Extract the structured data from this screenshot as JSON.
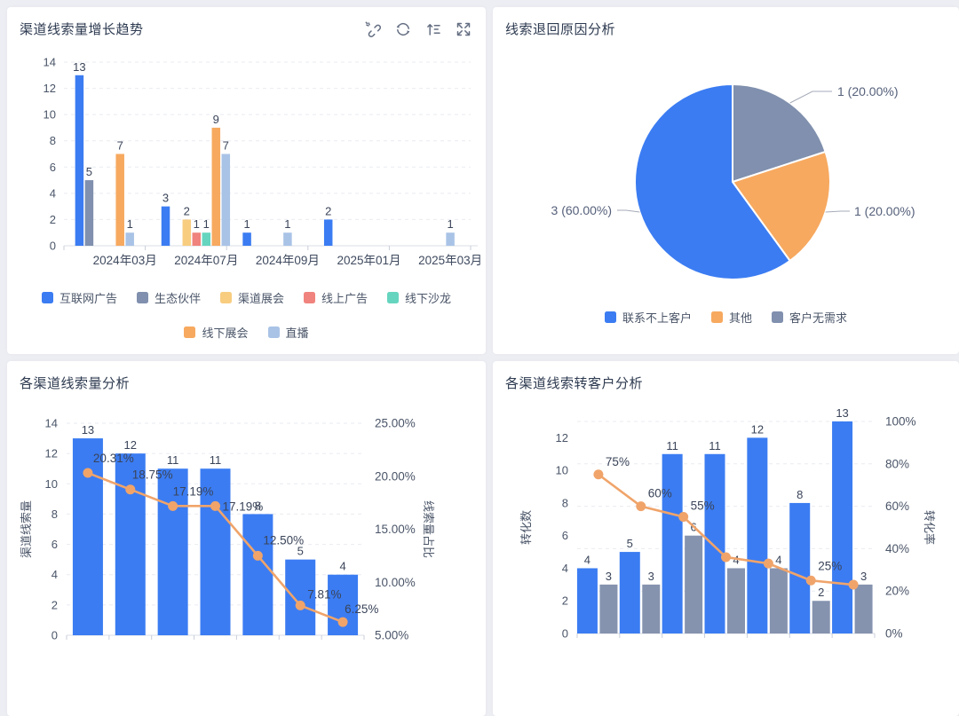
{
  "page": {
    "background": "#edeef3",
    "card_background": "#ffffff"
  },
  "cards": [
    {
      "title": "渠道线索量增长趋势",
      "toolbar_icons": [
        "unlink-icon",
        "refresh-icon",
        "sort-icon",
        "expand-icon"
      ]
    },
    {
      "title": "线索退回原因分析"
    },
    {
      "title": "各渠道线索量分析"
    },
    {
      "title": "各渠道线索转客户分析"
    }
  ],
  "colors": {
    "blue": "#3b7cf2",
    "slate": "#8090ae",
    "yellow": "#f8cd80",
    "salmon": "#f0837d",
    "teal": "#66d5bf",
    "orange": "#f7a95f",
    "light_blue": "#a9c3e6",
    "line_orange": "#f0a46a",
    "gray_bar": "#8593af"
  },
  "chart_data": [
    {
      "type": "bar",
      "title": "渠道线索量增长趋势",
      "categories": [
        "",
        "2024年03月",
        "",
        "2024年07月",
        "",
        "2024年09月",
        "",
        "2025年01月",
        "",
        "2025年03月"
      ],
      "series": [
        {
          "name": "互联网广告",
          "color": "#3b7cf2",
          "values": [
            13,
            0,
            3,
            0,
            1,
            0,
            2,
            0,
            0,
            0
          ]
        },
        {
          "name": "生态伙伴",
          "color": "#8090ae",
          "values": [
            5,
            0,
            0,
            0,
            0,
            0,
            0,
            0,
            0,
            0
          ]
        },
        {
          "name": "渠道展会",
          "color": "#f8cd80",
          "values": [
            0,
            0,
            0,
            2,
            0,
            0,
            0,
            0,
            0,
            0
          ]
        },
        {
          "name": "线上广告",
          "color": "#f0837d",
          "values": [
            0,
            0,
            0,
            1,
            0,
            0,
            0,
            0,
            0,
            0
          ]
        },
        {
          "name": "线下沙龙",
          "color": "#66d5bf",
          "values": [
            0,
            0,
            0,
            1,
            0,
            0,
            0,
            0,
            0,
            0
          ]
        },
        {
          "name": "线下展会",
          "color": "#f7a95f",
          "values": [
            0,
            7,
            0,
            9,
            0,
            0,
            0,
            0,
            0,
            0
          ]
        },
        {
          "name": "直播",
          "color": "#a9c3e6",
          "values": [
            0,
            1,
            0,
            7,
            0,
            1,
            0,
            0,
            0,
            1
          ]
        }
      ],
      "ylim": [
        0,
        14
      ],
      "yticks": [
        0,
        2,
        4,
        6,
        8,
        10,
        12,
        14
      ],
      "grid": true,
      "legend_position": "bottom"
    },
    {
      "type": "pie",
      "title": "线索退回原因分析",
      "slices": [
        {
          "name": "客户无需求",
          "value": 1,
          "pct": 20,
          "label": "1 (20.00%)",
          "color": "#8090ae"
        },
        {
          "name": "其他",
          "value": 1,
          "pct": 20,
          "label": "1 (20.00%)",
          "color": "#f7a95f"
        },
        {
          "name": "联系不上客户",
          "value": 3,
          "pct": 60,
          "label": "3 (60.00%)",
          "color": "#3b7cf2"
        }
      ],
      "legend": [
        "联系不上客户",
        "其他",
        "客户无需求"
      ],
      "legend_position": "bottom"
    },
    {
      "type": "bar-line",
      "title": "各渠道线索量分析",
      "bar_series": [
        {
          "color": "#3b7cf2",
          "values": [
            13,
            12,
            11,
            11,
            8,
            5,
            4
          ]
        }
      ],
      "line_series": {
        "color": "#f0a46a",
        "values": [
          20.31,
          18.75,
          17.19,
          17.19,
          12.5,
          7.81,
          6.25
        ],
        "labels": [
          "20.31%",
          "18.75%",
          "17.19%",
          "17.19%",
          "12.50%",
          "7.81%",
          "6.25%"
        ]
      },
      "left_axis": {
        "title": "渠道线索量",
        "ticks": [
          0,
          2,
          4,
          6,
          8,
          10,
          12,
          14
        ],
        "max": 14
      },
      "right_axis": {
        "title": "线索量占比",
        "ticks": [
          "5.00%",
          "10.00%",
          "15.00%",
          "20.00%",
          "25.00%"
        ],
        "min": 5,
        "max": 25
      },
      "x_labels_visible": false
    },
    {
      "type": "bar-line",
      "title": "各渠道线索转客户分析",
      "bar_series": [
        {
          "color": "#3b7cf2",
          "values": [
            4,
            5,
            11,
            11,
            12,
            8,
            13
          ]
        },
        {
          "color": "#8593af",
          "values": [
            3,
            3,
            6,
            4,
            4,
            2,
            3
          ]
        }
      ],
      "line_series": {
        "color": "#f0a46a",
        "values": [
          75,
          60,
          55,
          36,
          33,
          25,
          23
        ],
        "labels": [
          "75%",
          "60%",
          "55%",
          "",
          "",
          "25%",
          ""
        ]
      },
      "left_axis": {
        "title": "转化数",
        "ticks": [
          0,
          2,
          4,
          6,
          8,
          10,
          12
        ],
        "max": 13
      },
      "right_axis": {
        "title": "转化率",
        "ticks": [
          "0%",
          "20%",
          "40%",
          "60%",
          "80%",
          "100%"
        ],
        "min": 0,
        "max": 100
      },
      "x_labels_visible": false
    }
  ]
}
